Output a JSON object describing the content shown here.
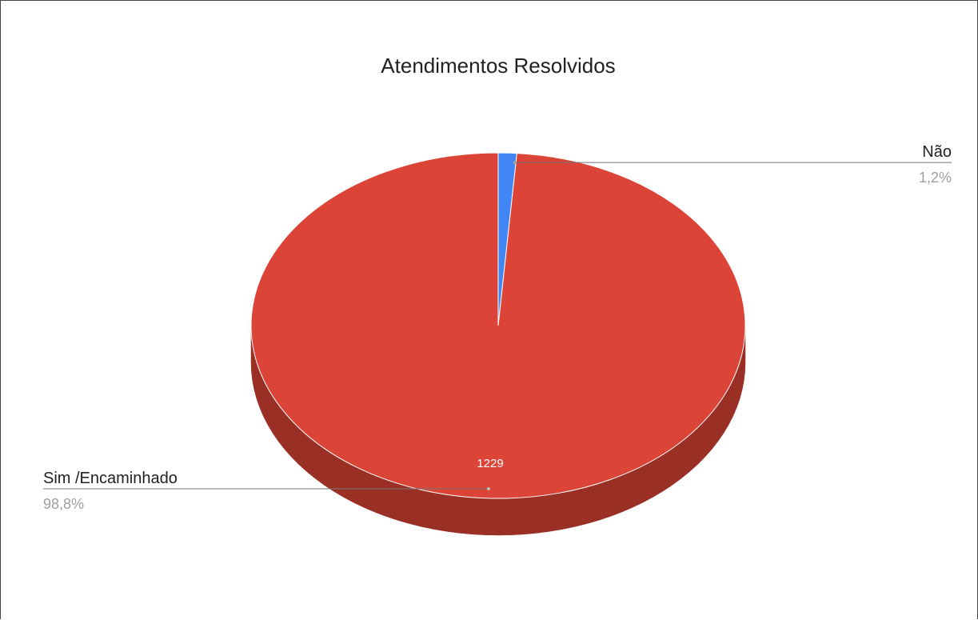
{
  "chart_data": {
    "type": "pie",
    "style": "3d",
    "title": "Atendimentos Resolvidos",
    "slices": [
      {
        "label": "Não",
        "value": 15,
        "percent_text": "1,2%",
        "color": "#4285f4",
        "side_color": "#2a5db0",
        "data_label": ""
      },
      {
        "label": "Sim /Encaminhado",
        "value": 1229,
        "percent_text": "98,8%",
        "color": "#db4437",
        "side_color": "#9a2f26",
        "data_label": "1229"
      }
    ],
    "legend": "labels-with-leader-lines"
  }
}
